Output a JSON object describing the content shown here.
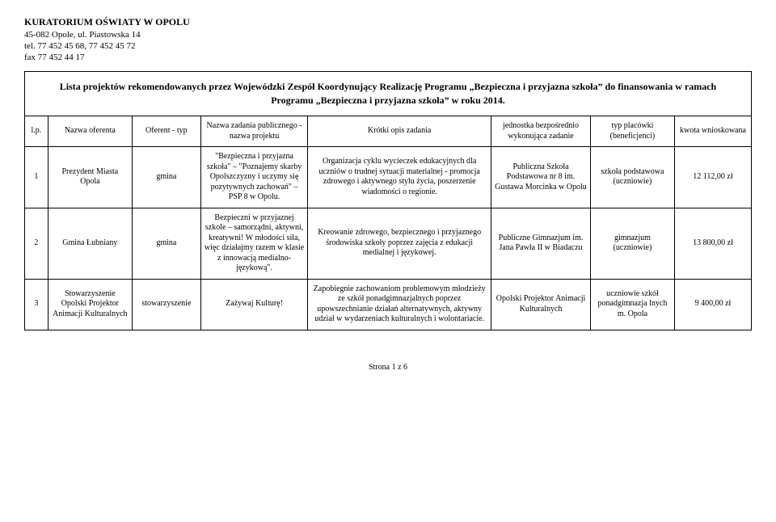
{
  "letterhead": {
    "line1": "KURATORIUM OŚWIATY W OPOLU",
    "line2": "45-082 Opole, ul. Piastowska 14",
    "line3": "tel. 77 452 45 68, 77 452 45 72",
    "line4": "fax 77 452 44 17"
  },
  "title": "Lista projektów rekomendowanych przez Wojewódzki Zespół Koordynujący Realizację Programu „Bezpieczna i przyjazna szkoła” do finansowania w ramach Programu „Bezpieczna i przyjazna szkoła” w roku 2014.",
  "headers": {
    "lp": "l.p.",
    "oferenta": "Nazwa oferenta",
    "typ": "Oferent - typ",
    "projekt": "Nazwa zadania publicznego - nazwa projektu",
    "opis": "Krótki opis zadania",
    "jednostka": "jednostka bezpośrednio wykonująca zadanie",
    "placowka": "typ placówki (beneficjenci)",
    "kwota": "kwota wnioskowana"
  },
  "rows": [
    {
      "lp": "1",
      "oferenta": "Prezydent Miasta Opola",
      "typ": "gmina",
      "projekt": "\"Bezpieczna i przyjazna szkoła\" – \"Poznajemy skarby Opolszczyzny i uczymy się pozytywnych zachowań\" – PSP 8 w Opolu.",
      "opis": "Organizacja cyklu wycieczek edukacyjnych dla uczniów o trudnej sytuacji materialnej - promocja zdrowego i aktywnego stylu życia, poszerzenie wiadomości o regionie.",
      "jednostka": "Publiczna Szkoła Podstawowa nr 8 im. Gustawa Morcinka w Opolu",
      "placowka": "szkoła podstawowa (uczniowie)",
      "kwota": "12 112,00 zł"
    },
    {
      "lp": "2",
      "oferenta": "Gmina Łubniany",
      "typ": "gmina",
      "projekt": "Bezpieczni w przyjaznej szkole – samorządni, aktywni, kreatywni! W młodości siła, więc działajmy razem w klasie z innowacją medialno-językową\".",
      "opis": "Kreowanie zdrowego, bezpiecznego i przyjaznego środowiska szkoły poprzez zajęcia z edukacji medialnej i językowej.",
      "jednostka": "Publiczne Gimnazjum im. Jana Pawła II w Biadaczu",
      "placowka": "gimnazjum (uczniowie)",
      "kwota": "13 800,00 zł"
    },
    {
      "lp": "3",
      "oferenta": "Stowarzyszenie Opolski Projektor Animacji Kulturalnych",
      "typ": "stowarzyszenie",
      "projekt": "Zażywaj Kulturę!",
      "opis": "Zapobiegnie zachowaniom problemowym młodzieży ze szkół ponadgimnazjalnych poprzez upowszechnianie działań alternatywnych, aktywny udział w wydarzeniach kulturalnych i wolontariacie.",
      "jednostka": "Opolski Projektor Animacji Kulturalnych",
      "placowka": "uczniowie szkół ponadgimnazja lnych m. Opola",
      "kwota": "9 400,00 zł"
    }
  ],
  "footer": "Strona 1 z 6"
}
